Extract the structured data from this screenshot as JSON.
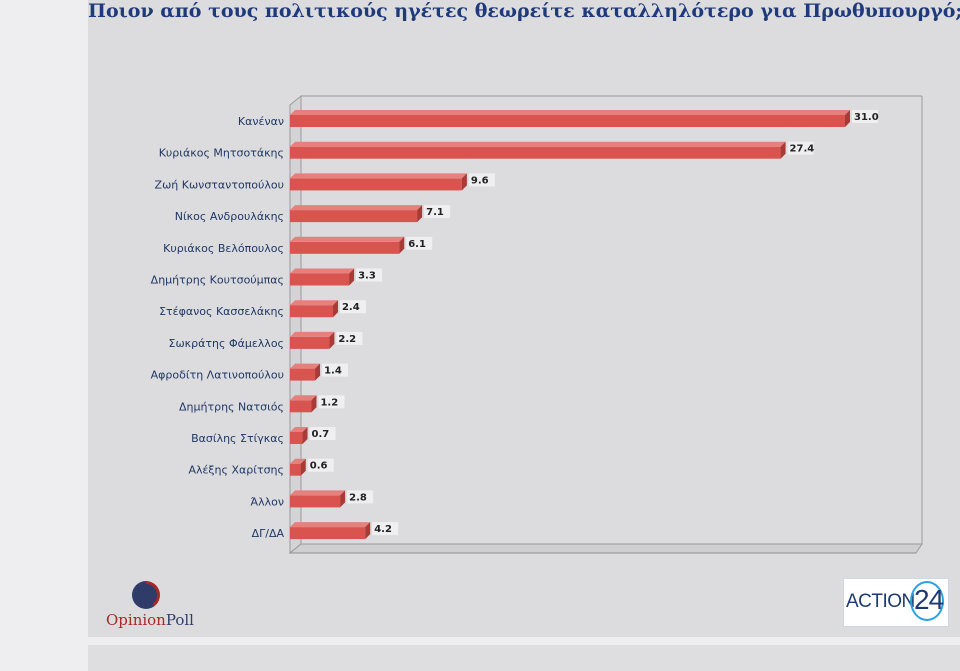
{
  "page": {
    "title": "Ποιον από τους πολιτικούς ηγέτες θεωρείτε καταλληλότερο για Πρωθυπουργό;"
  },
  "logos": {
    "opinionpoll_a": "Opinion",
    "opinionpoll_b": "Poll",
    "action24_text": "ACTION",
    "action24_num": "24"
  },
  "chart_data": {
    "type": "bar",
    "orientation": "horizontal",
    "title": "Ποιον από τους πολιτικούς ηγέτες θεωρείτε καταλληλότερο για Πρωθυπουργό;",
    "categories": [
      "Κανέναν",
      "Κυριάκος Μητσοτάκης",
      "Ζωή Κωνσταντοπούλου",
      "Νίκος Ανδρουλάκης",
      "Κυριάκος Βελόπουλος",
      "Δημήτρης Κουτσούμπας",
      "Στέφανος Κασσελάκης",
      "Σωκράτης Φάμελλος",
      "Αφροδίτη Λατινοπούλου",
      "Δημήτρης Νατσιός",
      "Βασίλης Στίγκας",
      "Αλέξης Χαρίτσης",
      "Άλλον",
      "ΔΓ/ΔΑ"
    ],
    "values": [
      31.0,
      27.4,
      9.6,
      7.1,
      6.1,
      3.3,
      2.4,
      2.2,
      1.4,
      1.2,
      0.7,
      0.6,
      2.8,
      4.2
    ],
    "value_labels": [
      "31.0",
      "27.4",
      "9.6",
      "7.1",
      "6.1",
      "3.3",
      "2.4",
      "2.2",
      "1.4",
      "1.2",
      "0.7",
      "0.6",
      "2.8",
      "4.2"
    ],
    "xlim": [
      0,
      31.0
    ],
    "grid": false,
    "style": "3d",
    "colors": {
      "bar": "#d9534f",
      "bar_top": "#e6807c",
      "bar_side": "#a93a36"
    }
  }
}
